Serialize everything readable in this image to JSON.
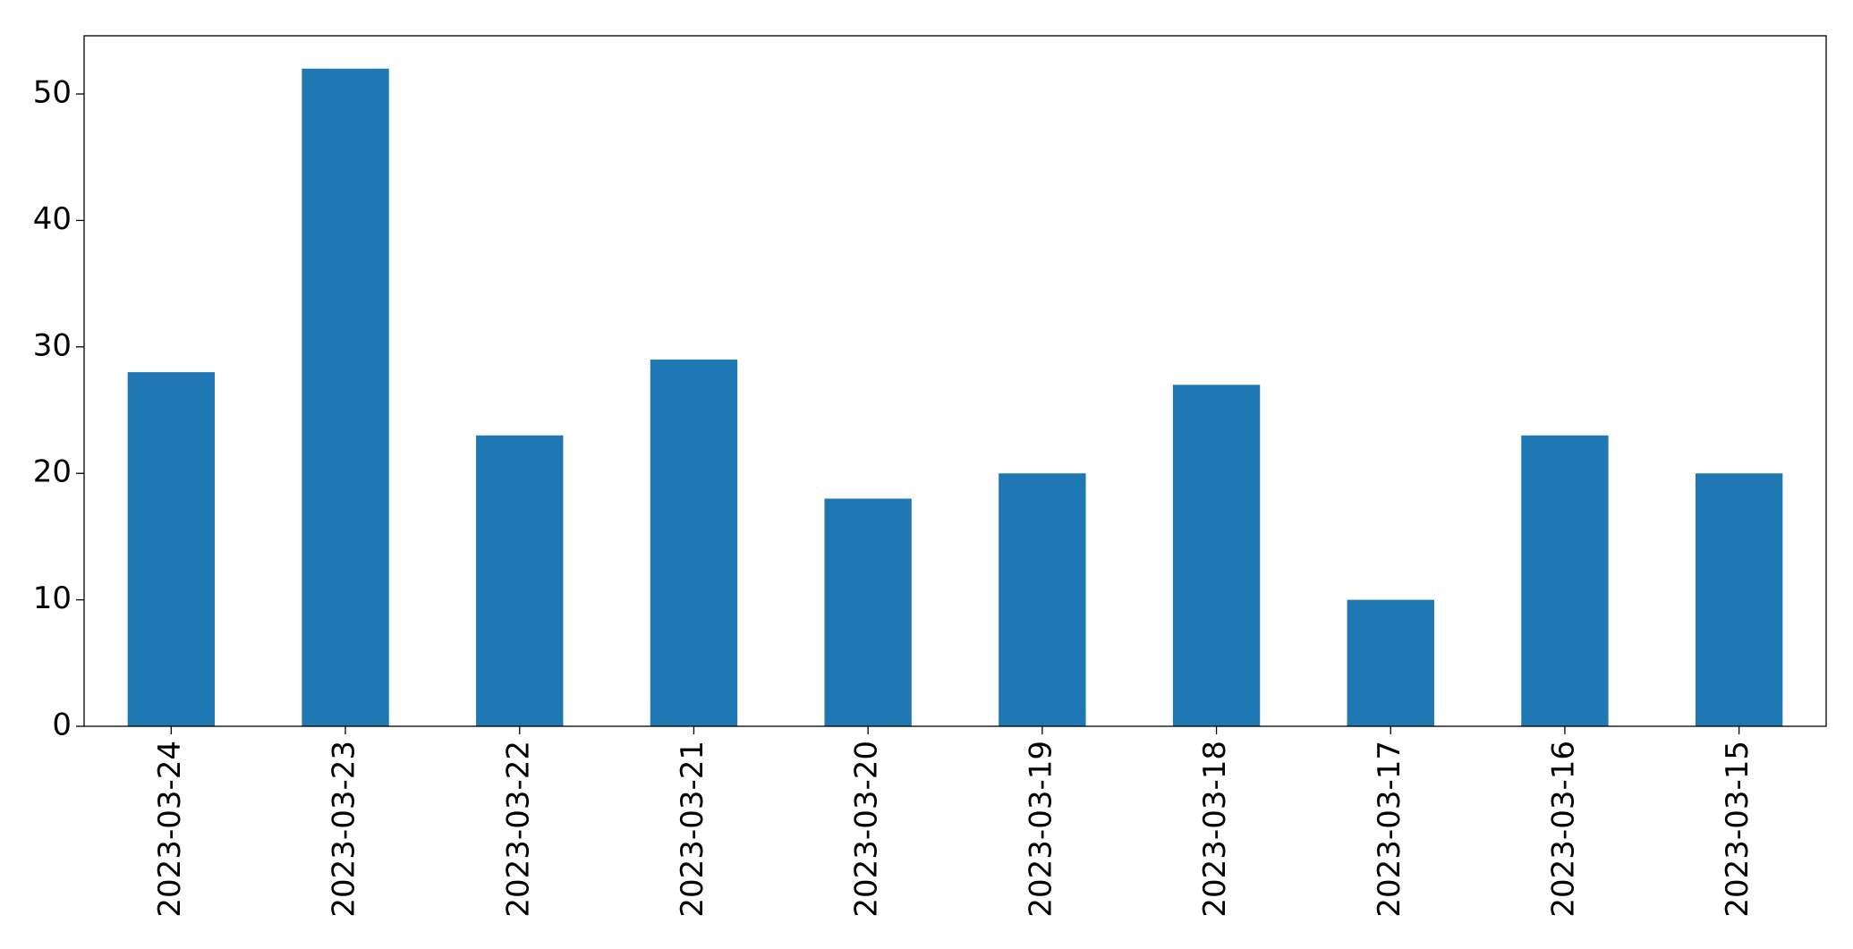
{
  "chart_data": {
    "type": "bar",
    "categories": [
      "2023-03-24",
      "2023-03-23",
      "2023-03-22",
      "2023-03-21",
      "2023-03-20",
      "2023-03-19",
      "2023-03-18",
      "2023-03-17",
      "2023-03-16",
      "2023-03-15"
    ],
    "values": [
      28,
      52,
      23,
      29,
      18,
      20,
      27,
      10,
      23,
      20
    ],
    "color": "#1f77b4",
    "ylim": [
      0,
      54.6
    ],
    "yticks": [
      0,
      10,
      20,
      30,
      40,
      50
    ],
    "grid": false
  }
}
